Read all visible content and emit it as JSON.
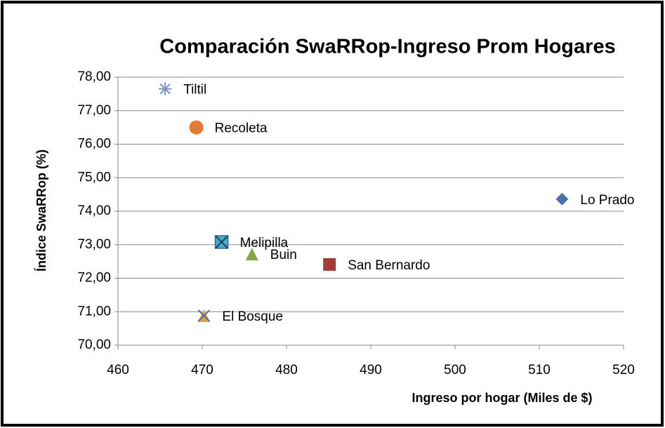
{
  "chart_data": {
    "type": "scatter",
    "title": "Comparación SwaRRop-Ingreso Prom Hogares",
    "x_label": "Ingreso por hogar (Miles de $)",
    "y_label": "Índice SwaRRop (%)",
    "xlim": [
      460,
      520
    ],
    "xticks": [
      460,
      470,
      480,
      490,
      500,
      510,
      520
    ],
    "ylim": [
      70,
      78
    ],
    "yticks": [
      {
        "value": 70,
        "label": "70,00"
      },
      {
        "value": 71,
        "label": "71,00"
      },
      {
        "value": 72,
        "label": "72,00"
      },
      {
        "value": 73,
        "label": "73,00"
      },
      {
        "value": 74,
        "label": "74,00"
      },
      {
        "value": 75,
        "label": "75,00"
      },
      {
        "value": 76,
        "label": "76,00"
      },
      {
        "value": 77,
        "label": "77,00"
      },
      {
        "value": 78,
        "label": "78,00"
      }
    ],
    "grid": true,
    "series": [
      {
        "name": "Lo Prado",
        "color": "#4a72a8",
        "marker": "diamond",
        "x": [
          512.7
        ],
        "values": [
          74.36
        ]
      },
      {
        "name": "San Bernardo",
        "color": "#a33b3b",
        "marker": "square",
        "x": [
          485.1
        ],
        "values": [
          72.41
        ]
      },
      {
        "name": "Buin",
        "color": "#8aa34a",
        "marker": "triangle",
        "x": [
          475.9
        ],
        "values": [
          72.72
        ]
      },
      {
        "name": "Melipilla",
        "color": "#4bacc6",
        "marker": "x-square",
        "x": [
          472.3
        ],
        "values": [
          73.08
        ]
      },
      {
        "name": "Tiltil",
        "color": "#7f8fc8",
        "marker": "star",
        "x": [
          465.6
        ],
        "values": [
          77.65
        ]
      },
      {
        "name": "Recoleta",
        "color": "#e07b39",
        "marker": "circle",
        "x": [
          469.3
        ],
        "values": [
          76.5
        ]
      },
      {
        "name": "El Bosque",
        "color": "#e8a040",
        "marker": "x",
        "x": [
          470.2
        ],
        "values": [
          70.88
        ]
      }
    ]
  }
}
